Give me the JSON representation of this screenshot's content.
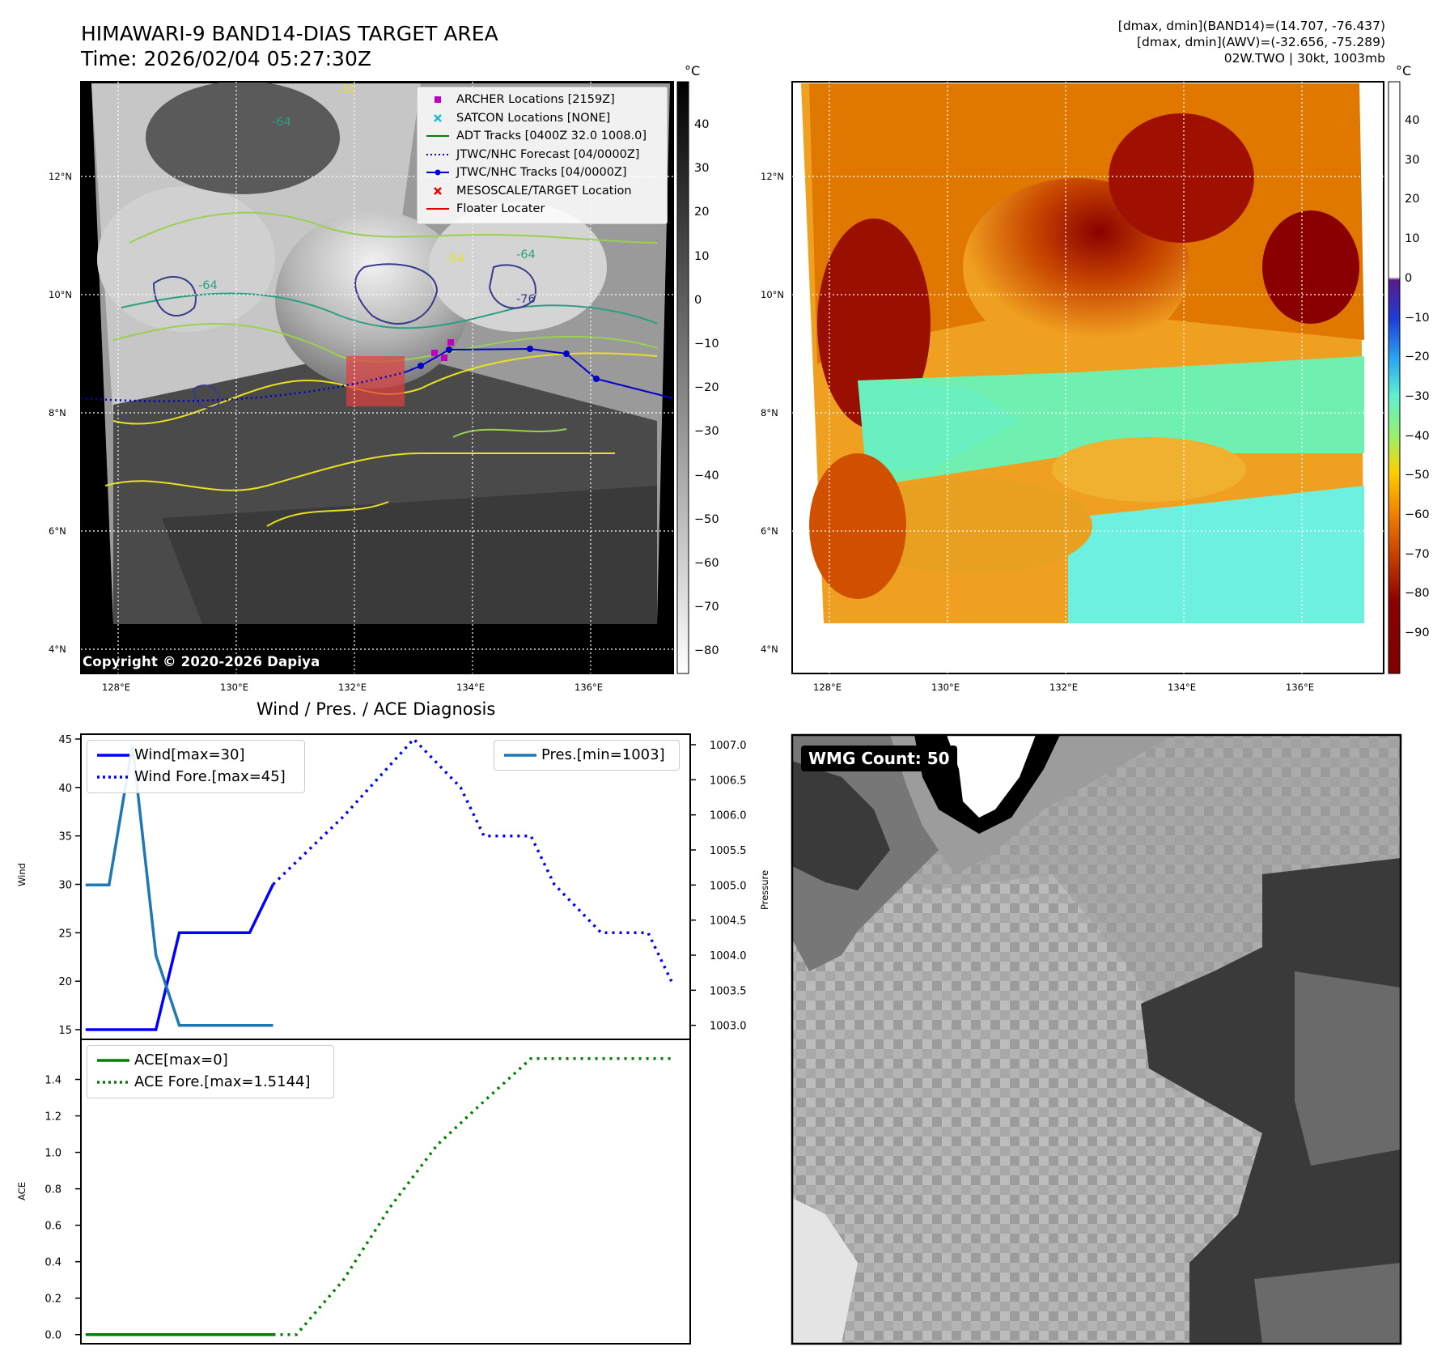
{
  "header": {
    "title_line1": "HIMAWARI-9 BAND14-DIAS TARGET AREA",
    "title_line2": "Time: 2026/02/04 05:27:30Z",
    "info_line1": "[dmax, dmin](BAND14)=(14.707, -76.437)",
    "info_line2": "[dmax, dmin](AWV)=(-32.656, -75.289)",
    "info_line3": "02W.TWO | 30kt, 1003mb"
  },
  "map_axes": {
    "lat_labels": [
      "12°N",
      "10°N",
      "8°N",
      "6°N",
      "4°N"
    ],
    "lon_labels": [
      "128°E",
      "130°E",
      "132°E",
      "134°E",
      "136°E"
    ]
  },
  "ir_panel": {
    "copyright": "Copyright © 2020-2026 Dapiya",
    "colorbar_unit": "°C",
    "colorbar_ticks": [
      "40",
      "30",
      "20",
      "10",
      "0",
      "−10",
      "−20",
      "−30",
      "−40",
      "−50",
      "−60",
      "−70",
      "−80"
    ],
    "contour_labels": [
      "-64",
      "-64",
      "-76",
      "-54",
      "-31",
      "-64"
    ],
    "legend": [
      {
        "label": "ARCHER Locations [2159Z]",
        "marker": "square",
        "color": "#c000c0"
      },
      {
        "label": "SATCON Locations [NONE]",
        "marker": "x",
        "color": "#17becf"
      },
      {
        "label": "ADT Tracks [0400Z 32.0 1008.0]",
        "marker": "line",
        "color": "#008000"
      },
      {
        "label": "JTWC/NHC Forecast [04/0000Z]",
        "marker": "dotted",
        "color": "#0000cc"
      },
      {
        "label": "JTWC/NHC Tracks [04/0000Z]",
        "marker": "line-dot",
        "color": "#0000cc"
      },
      {
        "label": "MESOSCALE/TARGET Location",
        "marker": "x",
        "color": "#e00000"
      },
      {
        "label": "Floater Locater",
        "marker": "line",
        "color": "#e00000"
      }
    ]
  },
  "awv_panel": {
    "colorbar_unit": "°C",
    "colorbar_ticks": [
      "40",
      "30",
      "20",
      "10",
      "0",
      "−10",
      "−20",
      "−30",
      "−40",
      "−50",
      "−60",
      "−70",
      "−80",
      "−90"
    ]
  },
  "wmg_panel": {
    "badge": "WMG Count: 50"
  },
  "chart_data": [
    {
      "type": "line",
      "title": "Wind / Pres. / ACE Diagnosis",
      "ylabel": "Wind",
      "ylabel_right": "Pressure",
      "ylim": [
        14,
        45.5
      ],
      "ylim_right": [
        1002.8,
        1007.15
      ],
      "yticks": [
        15,
        20,
        25,
        30,
        35,
        40,
        45
      ],
      "yticks_right": [
        "1003.0",
        "1003.5",
        "1004.0",
        "1004.5",
        "1005.0",
        "1005.5",
        "1006.0",
        "1006.5",
        "1007.0"
      ],
      "series": [
        {
          "name": "Wind[max=30]",
          "axis": "left",
          "style": "solid",
          "color": "#0000ff",
          "x": [
            0,
            1,
            2,
            3,
            4,
            5,
            6,
            7,
            8
          ],
          "values": [
            15,
            15,
            15,
            15,
            25,
            25,
            25,
            25,
            30
          ]
        },
        {
          "name": "Wind Fore.[max=45]",
          "axis": "left",
          "style": "dotted",
          "color": "#0000ff",
          "x": [
            8,
            11,
            14,
            16,
            17,
            19,
            20,
            22,
            24,
            25
          ],
          "values": [
            30,
            37,
            45,
            40,
            35,
            35,
            30,
            25,
            25,
            20
          ]
        },
        {
          "name": "Pres.[min=1003]",
          "axis": "right",
          "style": "solid",
          "color": "#1f77b4",
          "x": [
            0,
            1,
            2,
            3,
            4,
            5,
            6,
            7,
            8
          ],
          "values": [
            1005,
            1005,
            1007,
            1004,
            1003,
            1003,
            1003,
            1003,
            1003
          ]
        }
      ]
    },
    {
      "type": "line",
      "ylabel": "ACE",
      "ylim": [
        -0.05,
        1.62
      ],
      "yticks": [
        "0.0",
        "0.2",
        "0.4",
        "0.6",
        "0.8",
        "1.0",
        "1.2",
        "1.4"
      ],
      "series": [
        {
          "name": "ACE[max=0]",
          "style": "solid",
          "color": "#008000",
          "x": [
            0,
            8
          ],
          "values": [
            0,
            0
          ]
        },
        {
          "name": "ACE Fore.[max=1.5144]",
          "style": "dotted",
          "color": "#008000",
          "x": [
            8,
            9,
            11,
            13,
            15,
            17,
            19,
            20,
            25
          ],
          "values": [
            0,
            0,
            0.3,
            0.7,
            1.04,
            1.28,
            1.5144,
            1.5144,
            1.5144
          ]
        }
      ]
    }
  ]
}
